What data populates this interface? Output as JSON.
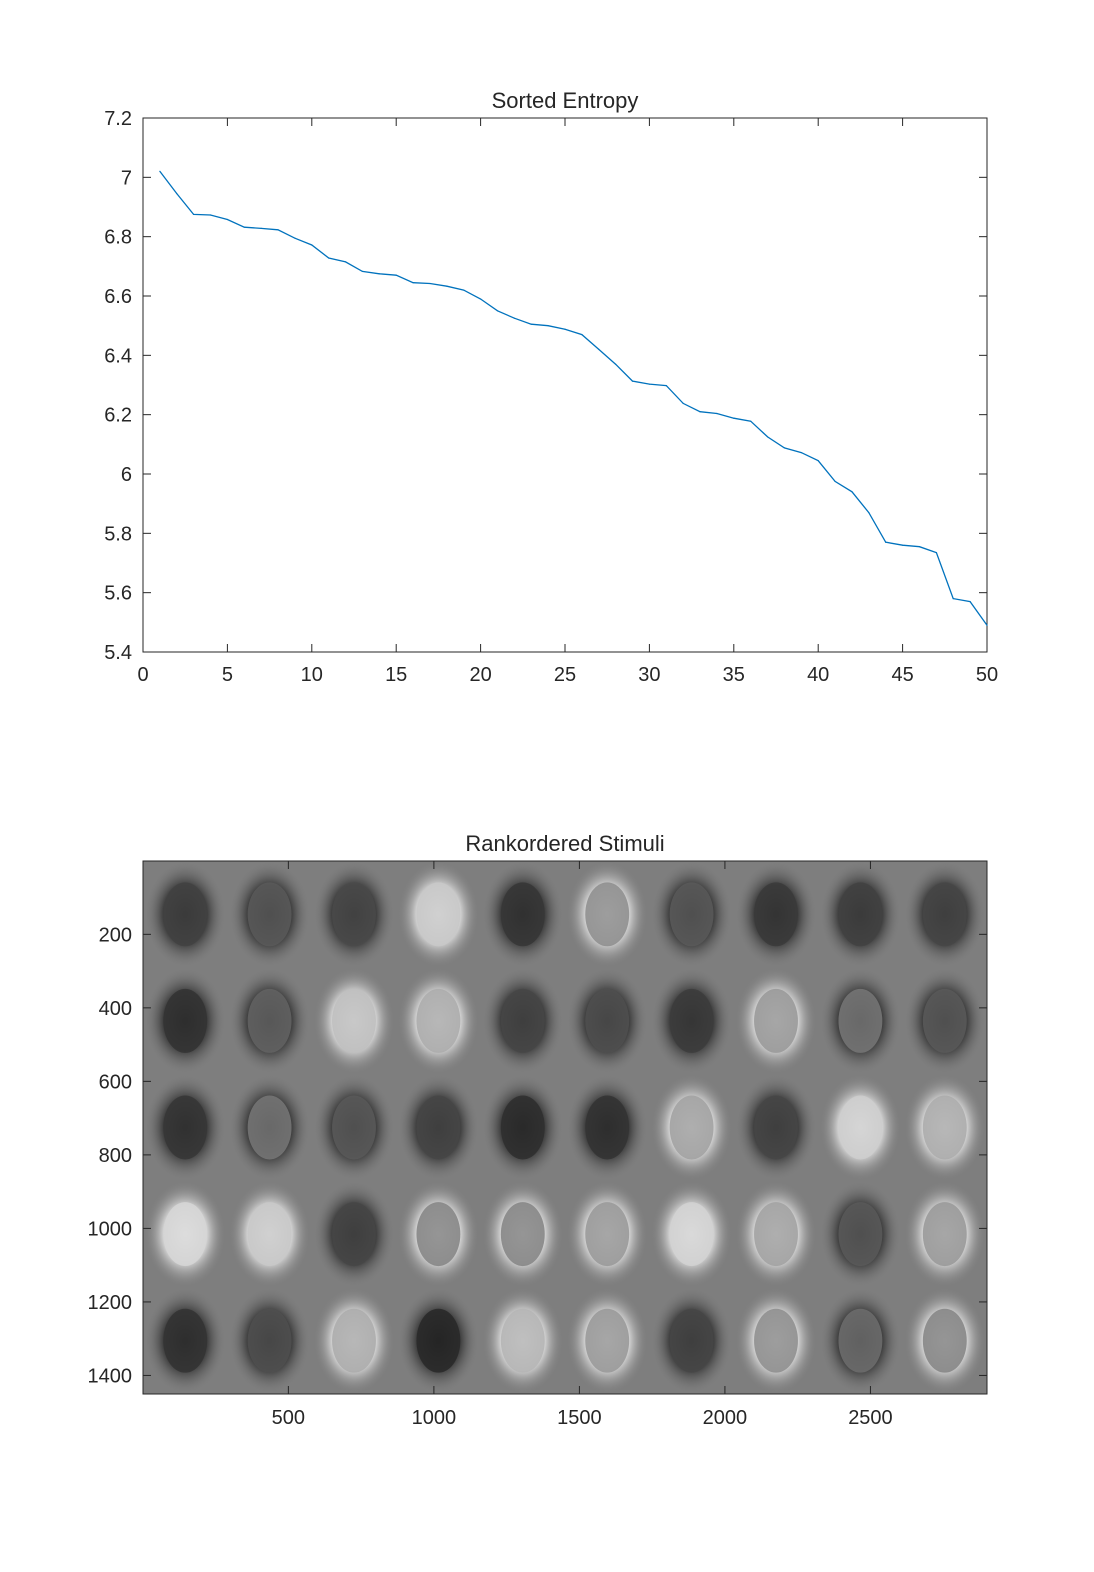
{
  "chart_data": [
    {
      "type": "line",
      "title": "Sorted Entropy",
      "xlabel": "",
      "ylabel": "",
      "xlim": [
        0,
        50
      ],
      "ylim": [
        5.4,
        7.2
      ],
      "xticks": [
        0,
        5,
        10,
        15,
        20,
        25,
        30,
        35,
        40,
        45,
        50
      ],
      "xtick_labels": [
        "0",
        "5",
        "10",
        "15",
        "20",
        "25",
        "30",
        "35",
        "40",
        "45",
        "50"
      ],
      "yticks": [
        5.4,
        5.6,
        5.8,
        6.0,
        6.2,
        6.4,
        6.6,
        6.8,
        7.0,
        7.2
      ],
      "ytick_labels": [
        "5.4",
        "5.6",
        "5.8",
        "6",
        "6.2",
        "6.4",
        "6.6",
        "6.8",
        "7",
        "7.2"
      ],
      "grid": false,
      "series": [
        {
          "color": "#0072BD",
          "x": [
            1,
            2,
            3,
            4,
            5,
            6,
            7,
            8,
            9,
            10,
            11,
            12,
            13,
            14,
            15,
            16,
            17,
            18,
            19,
            20,
            21,
            22,
            23,
            24,
            25,
            26,
            27,
            28,
            29,
            30,
            31,
            32,
            33,
            34,
            35,
            36,
            37,
            38,
            39,
            40,
            41,
            42,
            43,
            44,
            45,
            46,
            47,
            48,
            49,
            50
          ],
          "values": [
            7.02,
            6.945,
            6.875,
            6.873,
            6.858,
            6.832,
            6.828,
            6.823,
            6.795,
            6.772,
            6.728,
            6.715,
            6.683,
            6.675,
            6.67,
            6.645,
            6.642,
            6.633,
            6.62,
            6.59,
            6.55,
            6.525,
            6.505,
            6.5,
            6.488,
            6.47,
            6.42,
            6.37,
            6.313,
            6.303,
            6.298,
            6.238,
            6.21,
            6.204,
            6.188,
            6.178,
            6.125,
            6.088,
            6.072,
            6.045,
            5.975,
            5.94,
            5.87,
            5.77,
            5.76,
            5.755,
            5.735,
            5.58,
            5.57,
            5.49
          ]
        }
      ]
    },
    {
      "type": "heatmap",
      "title": "Rankordered Stimuli",
      "colormap": "gray",
      "xlim": [
        0.5,
        2900.5
      ],
      "ylim": [
        0.5,
        1450.5
      ],
      "y_reversed": true,
      "xticks": [
        500,
        1000,
        1500,
        2000,
        2500
      ],
      "xtick_labels": [
        "500",
        "1000",
        "1500",
        "2000",
        "2500"
      ],
      "yticks": [
        200,
        400,
        600,
        800,
        1000,
        1200,
        1400
      ],
      "ytick_labels": [
        "200",
        "400",
        "600",
        "800",
        "1000",
        "1200",
        "1400"
      ],
      "grid_rows": 5,
      "grid_cols": 10,
      "tile_tones": [
        [
          0.18,
          0.3,
          0.22,
          0.85,
          0.12,
          0.55,
          0.3,
          0.14,
          0.18,
          0.2
        ],
        [
          0.1,
          0.35,
          0.8,
          0.7,
          0.2,
          0.25,
          0.15,
          0.6,
          0.45,
          0.3
        ],
        [
          0.12,
          0.45,
          0.3,
          0.2,
          0.08,
          0.1,
          0.65,
          0.2,
          0.88,
          0.7
        ],
        [
          0.92,
          0.85,
          0.2,
          0.5,
          0.5,
          0.6,
          0.9,
          0.65,
          0.3,
          0.6
        ],
        [
          0.1,
          0.25,
          0.7,
          0.05,
          0.75,
          0.6,
          0.2,
          0.55,
          0.4,
          0.5
        ]
      ]
    }
  ]
}
